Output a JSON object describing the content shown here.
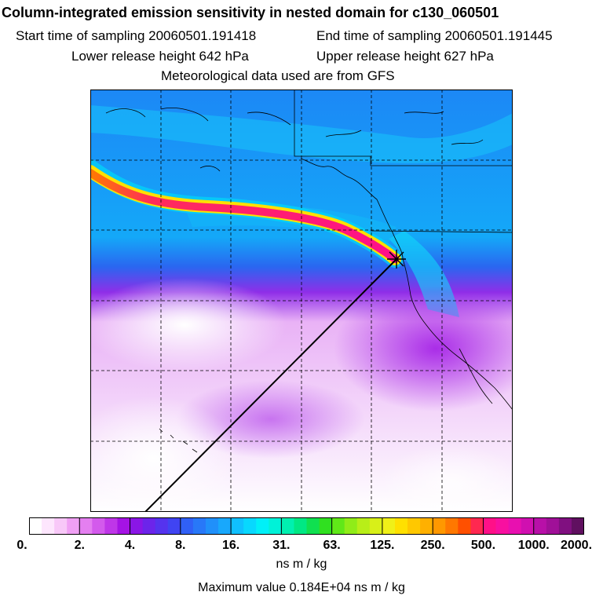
{
  "header": {
    "title": "Column-integrated emission sensitivity in nested domain for c130_060501",
    "start_time": "Start time of sampling 20060501.191418",
    "end_time": "End time of sampling 20060501.191445",
    "lower_height": "Lower release height  642 hPa",
    "upper_height": "Upper release height  627 hPa",
    "met_data": "Meteorological data used are from GFS"
  },
  "colorbar": {
    "ticks": [
      "0.",
      "2.",
      "4.",
      "8.",
      "16.",
      "31.",
      "63.",
      "125.",
      "250.",
      "500.",
      "1000.",
      "2000."
    ],
    "colors": [
      "#ffffff",
      "#fde6fd",
      "#f8c8f8",
      "#f0a0f4",
      "#e47ff0",
      "#d35aec",
      "#bf36e8",
      "#a513e4",
      "#8a16e6",
      "#6c24ea",
      "#5533ee",
      "#4044f2",
      "#3060f6",
      "#2878f8",
      "#2090fa",
      "#18a8fc",
      "#10c0fe",
      "#08d8fe",
      "#00f0f8",
      "#00f2d8",
      "#00f0b0",
      "#00e884",
      "#10e050",
      "#30e020",
      "#60e818",
      "#90ec18",
      "#b8ee18",
      "#d8f018",
      "#f0f018",
      "#ffe000",
      "#ffc800",
      "#ffb000",
      "#ff9800",
      "#ff7800",
      "#ff5000",
      "#ff2850",
      "#ff1088",
      "#f810a0",
      "#e810b0",
      "#d010b0",
      "#b810a8",
      "#a01098",
      "#801080",
      "#601060"
    ],
    "unit": "ns m / kg",
    "maximum": "Maximum value  0.184E+04 ns m / kg"
  },
  "map": {
    "release_marker": "release-site-asterisk"
  }
}
